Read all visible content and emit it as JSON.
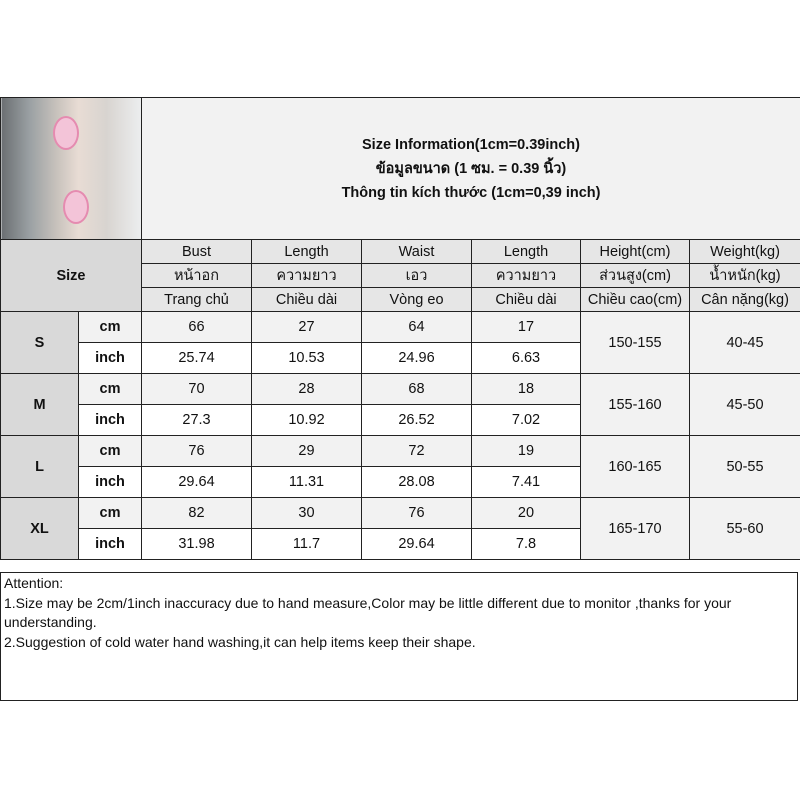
{
  "title": {
    "line1": "Size Information(1cm=0.39inch)",
    "line2": "ข้อมูลขนาด (1 ซม. = 0.39 นิ้ว)",
    "line3": "Thông tin kích thước (1cm=0,39 inch)"
  },
  "size_label": "Size",
  "headers": [
    [
      "Bust",
      "Length",
      "Waist",
      "Length",
      "Height(cm)",
      "Weight(kg)"
    ],
    [
      "หน้าอก",
      "ความยาว",
      "เอว",
      "ความยาว",
      "ส่วนสูง(cm)",
      "น้ำหนัก(kg)"
    ],
    [
      "Trang chủ",
      "Chiều dài",
      "Vòng eo",
      "Chiều dài",
      "Chiều cao(cm)",
      "Cân nặng(kg)"
    ]
  ],
  "units": {
    "cm": "cm",
    "inch": "inch"
  },
  "rows": [
    {
      "size": "S",
      "cm": [
        "66",
        "27",
        "64",
        "17"
      ],
      "inch": [
        "25.74",
        "10.53",
        "24.96",
        "6.63"
      ],
      "height": "150-155",
      "weight": "40-45"
    },
    {
      "size": "M",
      "cm": [
        "70",
        "28",
        "68",
        "18"
      ],
      "inch": [
        "27.3",
        "10.92",
        "26.52",
        "7.02"
      ],
      "height": "155-160",
      "weight": "45-50"
    },
    {
      "size": "L",
      "cm": [
        "76",
        "29",
        "72",
        "19"
      ],
      "inch": [
        "29.64",
        "11.31",
        "28.08",
        "7.41"
      ],
      "height": "160-165",
      "weight": "50-55"
    },
    {
      "size": "XL",
      "cm": [
        "82",
        "30",
        "76",
        "20"
      ],
      "inch": [
        "31.98",
        "11.7",
        "29.64",
        "7.8"
      ],
      "height": "165-170",
      "weight": "55-60"
    }
  ],
  "attention": {
    "heading": "Attention:",
    "note1": "1.Size may be 2cm/1inch inaccuracy due to hand measure,Color may be little different due to monitor ,thanks for your understanding.",
    "note2": "2.Suggestion of cold water hand washing,it can help items keep their shape."
  }
}
